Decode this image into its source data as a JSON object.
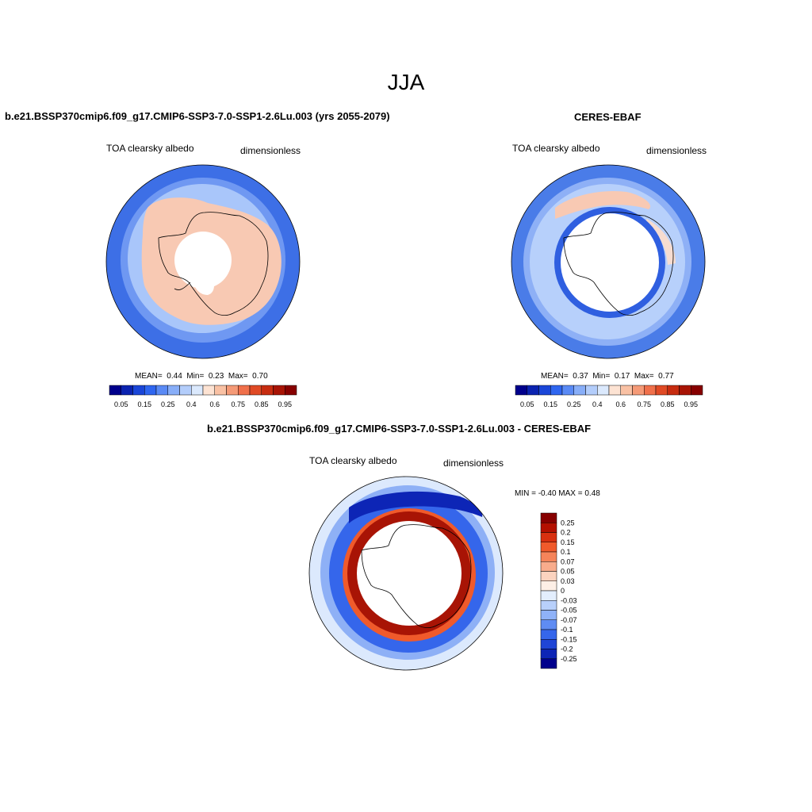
{
  "page": {
    "title": "JJA"
  },
  "panels": [
    {
      "title": "b.e21.BSSP370cmip6.f09_g17.CMIP6-SSP3-7.0-SSP1-2.6Lu.003 (yrs 2055-2079)",
      "left_label": "TOA clearsky albedo",
      "right_label": "dimensionless",
      "stats": {
        "mean_label": "MEAN=",
        "mean": "0.44",
        "min_label": "Min=",
        "min": "0.23",
        "max_label": "Max=",
        "max": "0.70"
      }
    },
    {
      "title": "CERES-EBAF",
      "left_label": "TOA clearsky albedo",
      "right_label": "dimensionless",
      "stats": {
        "mean_label": "MEAN=",
        "mean": "0.37",
        "min_label": "Min=",
        "min": "0.17",
        "max_label": "Max=",
        "max": "0.77"
      }
    },
    {
      "title": "b.e21.BSSP370cmip6.f09_g17.CMIP6-SSP3-7.0-SSP1-2.6Lu.003 - CERES-EBAF",
      "left_label": "TOA clearsky albedo",
      "right_label": "dimensionless",
      "stats": {
        "text": "MIN =  -0.40 MAX =   0.48"
      }
    }
  ],
  "colorbar_main": {
    "colors": [
      "#00008c",
      "#0b23b0",
      "#1a46d8",
      "#2f66f0",
      "#5a8af5",
      "#88aef8",
      "#b3cdfb",
      "#dbe9fd",
      "#fde3d3",
      "#f9c1a4",
      "#f59a77",
      "#f0704b",
      "#e04a25",
      "#c72c10",
      "#a81405",
      "#870000"
    ],
    "labels": [
      "0.05",
      "0.15",
      "0.25",
      "0.4",
      "0.6",
      "0.75",
      "0.85",
      "0.95"
    ]
  },
  "colorbar_diff": {
    "colors": [
      "#870000",
      "#b31000",
      "#d83010",
      "#f05a2b",
      "#f5845a",
      "#f8ac8c",
      "#fbd3bf",
      "#fdefe6",
      "#e3eefd",
      "#b8d0fb",
      "#8fb2f8",
      "#5f8cf3",
      "#3566eb",
      "#1f45d6",
      "#0d25b6",
      "#00008c"
    ],
    "labels": [
      "0.25",
      "0.2",
      "0.15",
      "0.1",
      "0.07",
      "0.05",
      "0.03",
      "0",
      "-0.03",
      "-0.05",
      "-0.07",
      "-0.1",
      "-0.15",
      "-0.2",
      "-0.25"
    ]
  }
}
